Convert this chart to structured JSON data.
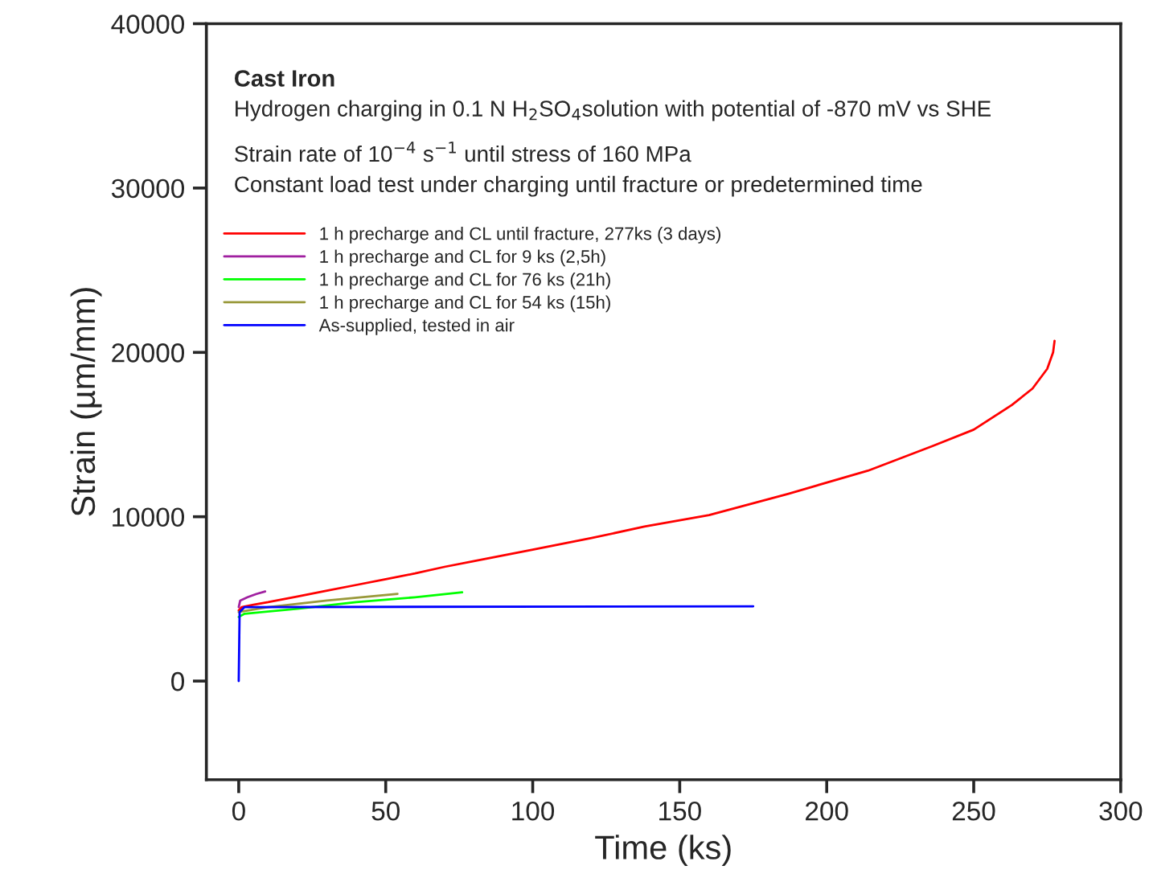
{
  "chart_data": {
    "type": "line",
    "xlabel": "Time (ks)",
    "ylabel": "Strain (µm/mm)",
    "xlim": [
      -11,
      300
    ],
    "xticks": [
      0,
      50,
      100,
      150,
      200,
      250,
      300
    ],
    "ylim": [
      -6000,
      40000
    ],
    "yticks": [
      0,
      10000,
      20000,
      30000,
      40000
    ],
    "grid": false,
    "legend": "top left",
    "line_style": "solid",
    "marker": "none",
    "annotations": [
      "Cast Iron",
      "Hydrogen charging in 0.1 N H$_{2}$SO$_{4}$solution with potential of -870 mV vs SHE",
      "Strain rate of 10$^{−4}$ s$^{−1}$ until stress of 160 MPa",
      "Constant load test under charging until fracture or predetermined time"
    ],
    "series": [
      {
        "name": "1 h precharge and CL until fracture, 277ks (3 days)",
        "color": "#ff0000",
        "x": [
          0,
          1,
          5,
          10,
          20,
          30,
          40,
          50,
          60,
          70,
          80,
          100,
          120,
          138,
          160,
          187,
          214,
          236,
          250,
          263,
          270,
          275,
          277,
          277.5
        ],
        "values": [
          4300,
          4500,
          4650,
          4800,
          5150,
          5500,
          5850,
          6200,
          6550,
          6950,
          7300,
          8000,
          8700,
          9400,
          10100,
          11400,
          12800,
          14300,
          15300,
          16800,
          17800,
          19000,
          20000,
          20700
        ]
      },
      {
        "name": "1 h precharge and CL for 9 ks (2,5h)",
        "color": "#a020a0",
        "x": [
          0,
          0.5,
          3,
          6,
          9
        ],
        "values": [
          4500,
          4900,
          5100,
          5300,
          5450
        ]
      },
      {
        "name": "1 h precharge and CL for 76 ks (21h)",
        "color": "#00ff00",
        "x": [
          0,
          2,
          20,
          40,
          60,
          76
        ],
        "values": [
          3900,
          4100,
          4400,
          4800,
          5100,
          5400
        ]
      },
      {
        "name": "1 h precharge and CL for 54 ks (15h)",
        "color": "#99993a",
        "x": [
          0,
          10,
          30,
          54
        ],
        "values": [
          4200,
          4500,
          4900,
          5300
        ]
      },
      {
        "name": "As-supplied, tested in air",
        "color": "#0000ff",
        "x": [
          0,
          0.3,
          2,
          175
        ],
        "values": [
          0,
          4200,
          4500,
          4550
        ]
      }
    ]
  }
}
